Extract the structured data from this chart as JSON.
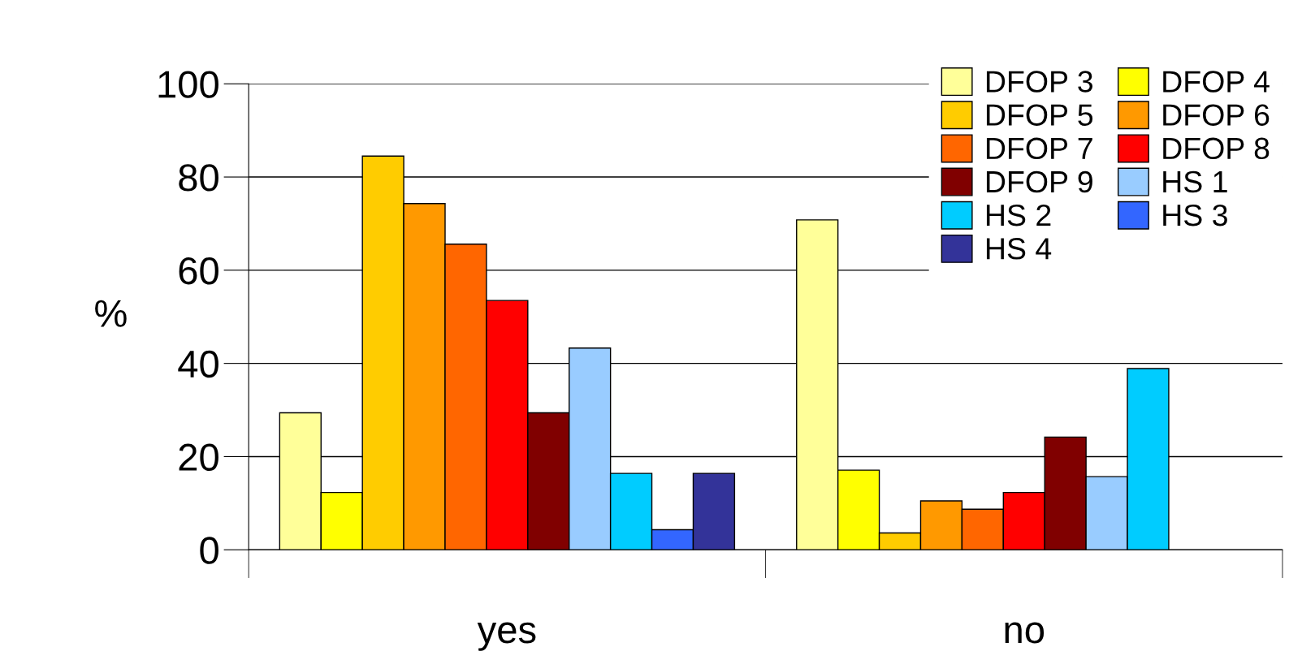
{
  "chart_data": {
    "type": "bar",
    "ylabel": "%",
    "categories": [
      "yes",
      "no"
    ],
    "series": [
      {
        "name": "DFOP 3",
        "color": "#ffff99",
        "values": [
          29.4,
          70.8
        ]
      },
      {
        "name": "DFOP 4",
        "color": "#ffff00",
        "values": [
          12.3,
          17.1
        ]
      },
      {
        "name": "DFOP 5",
        "color": "#ffcc00",
        "values": [
          84.5,
          3.6
        ]
      },
      {
        "name": "DFOP 6",
        "color": "#ff9900",
        "values": [
          74.3,
          10.5
        ]
      },
      {
        "name": "DFOP 7",
        "color": "#ff6600",
        "values": [
          65.6,
          8.7
        ]
      },
      {
        "name": "DFOP 8",
        "color": "#ff0000",
        "values": [
          53.5,
          12.3
        ]
      },
      {
        "name": "DFOP 9",
        "color": "#800000",
        "values": [
          29.4,
          24.2
        ]
      },
      {
        "name": "HS 1",
        "color": "#99ccff",
        "values": [
          43.3,
          15.7
        ]
      },
      {
        "name": "HS 2",
        "color": "#00ccff",
        "values": [
          16.4,
          38.9
        ]
      },
      {
        "name": "HS 3",
        "color": "#3366ff",
        "values": [
          4.3,
          null
        ]
      },
      {
        "name": "HS 4",
        "color": "#333399",
        "values": [
          16.4,
          null
        ]
      }
    ],
    "ylim": [
      0,
      100
    ],
    "yticks": [
      0,
      20,
      40,
      60,
      80,
      100
    ],
    "grid": "y",
    "legend": "top right"
  }
}
